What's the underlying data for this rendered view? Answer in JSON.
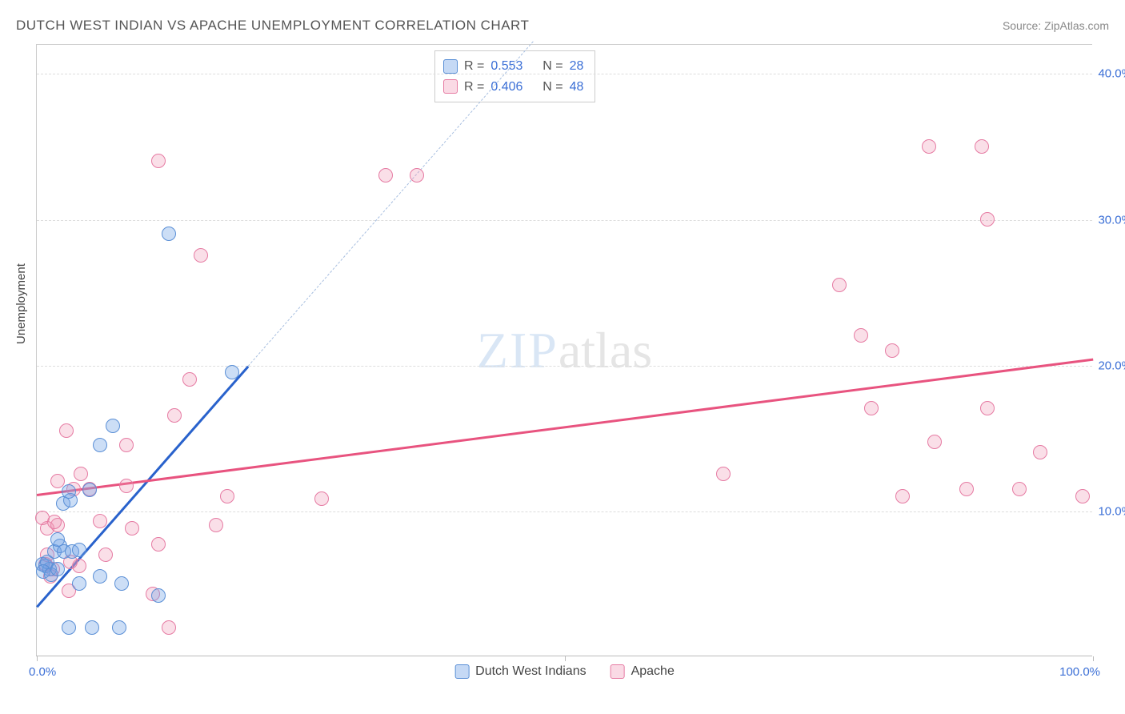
{
  "header": {
    "title": "DUTCH WEST INDIAN VS APACHE UNEMPLOYMENT CORRELATION CHART",
    "source_label": "Source: ",
    "source_name": "ZipAtlas.com"
  },
  "chart": {
    "type": "scatter",
    "ylabel": "Unemployment",
    "xlim": [
      0,
      100
    ],
    "ylim": [
      0,
      42
    ],
    "yticks": [
      10.0,
      20.0,
      30.0,
      40.0
    ],
    "ytick_labels": [
      "10.0%",
      "20.0%",
      "30.0%",
      "40.0%"
    ],
    "xtick_marks": [
      0,
      50,
      100
    ],
    "xtick_low": "0.0%",
    "xtick_high": "100.0%",
    "background_color": "#ffffff",
    "grid_color": "#dddddd",
    "axis_color": "#cccccc",
    "tick_label_color": "#3b6fd6",
    "watermark_text_a": "ZIP",
    "watermark_text_b": "atlas",
    "series": {
      "blue": {
        "label": "Dutch West Indians",
        "fill": "rgba(110,160,230,0.35)",
        "stroke": "#5a8fd6",
        "R": 0.553,
        "N": 28,
        "trend": {
          "x1": 0,
          "y1": 3.5,
          "x2": 20,
          "y2": 20.0,
          "color": "#2962cc",
          "extrapolate_to_x": 47
        },
        "points": [
          {
            "x": 0.5,
            "y": 6.3
          },
          {
            "x": 0.8,
            "y": 6.2
          },
          {
            "x": 1.2,
            "y": 6.0
          },
          {
            "x": 1.0,
            "y": 6.5
          },
          {
            "x": 0.6,
            "y": 5.8
          },
          {
            "x": 1.4,
            "y": 5.6
          },
          {
            "x": 1.7,
            "y": 7.2
          },
          {
            "x": 2.2,
            "y": 7.6
          },
          {
            "x": 2.6,
            "y": 7.2
          },
          {
            "x": 2.0,
            "y": 6.0
          },
          {
            "x": 3.3,
            "y": 7.2
          },
          {
            "x": 4.0,
            "y": 7.3
          },
          {
            "x": 2.0,
            "y": 8.0
          },
          {
            "x": 2.5,
            "y": 10.5
          },
          {
            "x": 3.2,
            "y": 10.7
          },
          {
            "x": 3.0,
            "y": 11.3
          },
          {
            "x": 5.0,
            "y": 11.4
          },
          {
            "x": 6.0,
            "y": 14.5
          },
          {
            "x": 7.2,
            "y": 15.8
          },
          {
            "x": 4.0,
            "y": 5.0
          },
          {
            "x": 6.0,
            "y": 5.5
          },
          {
            "x": 8.0,
            "y": 5.0
          },
          {
            "x": 11.5,
            "y": 4.2
          },
          {
            "x": 3.0,
            "y": 2.0
          },
          {
            "x": 5.2,
            "y": 2.0
          },
          {
            "x": 7.8,
            "y": 2.0
          },
          {
            "x": 12.5,
            "y": 29.0
          },
          {
            "x": 18.5,
            "y": 19.5
          }
        ]
      },
      "pink": {
        "label": "Apache",
        "fill": "rgba(240,150,180,0.30)",
        "stroke": "#e67ba3",
        "R": 0.406,
        "N": 48,
        "trend": {
          "x1": 0,
          "y1": 11.2,
          "x2": 100,
          "y2": 20.5,
          "color": "#e8537f"
        },
        "points": [
          {
            "x": 0.8,
            "y": 6.3
          },
          {
            "x": 1.0,
            "y": 7.0
          },
          {
            "x": 1.5,
            "y": 6.0
          },
          {
            "x": 1.0,
            "y": 8.8
          },
          {
            "x": 2.0,
            "y": 9.0
          },
          {
            "x": 0.5,
            "y": 9.5
          },
          {
            "x": 1.7,
            "y": 9.2
          },
          {
            "x": 3.0,
            "y": 4.5
          },
          {
            "x": 4.0,
            "y": 6.2
          },
          {
            "x": 2.0,
            "y": 12.0
          },
          {
            "x": 2.8,
            "y": 15.5
          },
          {
            "x": 3.5,
            "y": 11.5
          },
          {
            "x": 5.0,
            "y": 11.5
          },
          {
            "x": 4.2,
            "y": 12.5
          },
          {
            "x": 8.5,
            "y": 14.5
          },
          {
            "x": 6.0,
            "y": 9.3
          },
          {
            "x": 8.5,
            "y": 11.7
          },
          {
            "x": 9.0,
            "y": 8.8
          },
          {
            "x": 11.5,
            "y": 7.7
          },
          {
            "x": 11.0,
            "y": 4.3
          },
          {
            "x": 12.5,
            "y": 2.0
          },
          {
            "x": 13.0,
            "y": 16.5
          },
          {
            "x": 14.5,
            "y": 19.0
          },
          {
            "x": 17.0,
            "y": 9.0
          },
          {
            "x": 18.0,
            "y": 11.0
          },
          {
            "x": 11.5,
            "y": 34.0
          },
          {
            "x": 15.5,
            "y": 27.5
          },
          {
            "x": 27.0,
            "y": 10.8
          },
          {
            "x": 33.0,
            "y": 33.0
          },
          {
            "x": 36.0,
            "y": 33.0
          },
          {
            "x": 65.0,
            "y": 12.5
          },
          {
            "x": 76.0,
            "y": 25.5
          },
          {
            "x": 78.0,
            "y": 22.0
          },
          {
            "x": 79.0,
            "y": 17.0
          },
          {
            "x": 81.0,
            "y": 21.0
          },
          {
            "x": 82.0,
            "y": 11.0
          },
          {
            "x": 85.0,
            "y": 14.7
          },
          {
            "x": 84.5,
            "y": 35.0
          },
          {
            "x": 88.0,
            "y": 11.5
          },
          {
            "x": 89.5,
            "y": 35.0
          },
          {
            "x": 90.0,
            "y": 17.0
          },
          {
            "x": 90.0,
            "y": 30.0
          },
          {
            "x": 93.0,
            "y": 11.5
          },
          {
            "x": 95.0,
            "y": 14.0
          },
          {
            "x": 99.0,
            "y": 11.0
          },
          {
            "x": 3.2,
            "y": 6.5
          },
          {
            "x": 1.3,
            "y": 5.5
          },
          {
            "x": 6.5,
            "y": 7.0
          }
        ]
      }
    },
    "stat_box": {
      "r_label": "R =",
      "n_label": "N ="
    },
    "legend_bottom": [
      "Dutch West Indians",
      "Apache"
    ]
  }
}
